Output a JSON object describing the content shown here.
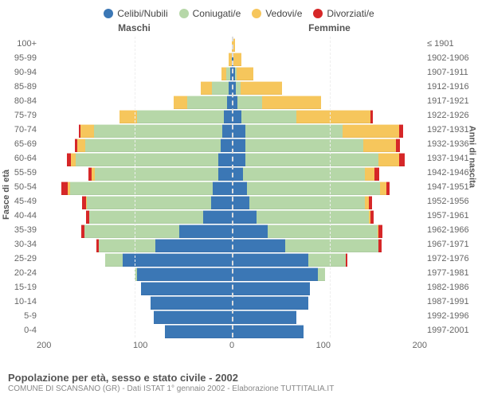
{
  "chart": {
    "type": "population-pyramid",
    "legend": [
      {
        "label": "Celibi/Nubili",
        "color": "#3b77b5"
      },
      {
        "label": "Coniugati/e",
        "color": "#b6d7a8"
      },
      {
        "label": "Vedovi/e",
        "color": "#f6c65c"
      },
      {
        "label": "Divorziati/e",
        "color": "#d62728"
      }
    ],
    "header_male": "Maschi",
    "header_female": "Femmine",
    "y_left_title": "Fasce di età",
    "y_right_title": "Anni di nascita",
    "x_ticks": [
      "200",
      "100",
      "0",
      "100",
      "200"
    ],
    "xmax": 200,
    "title": "Popolazione per età, sesso e stato civile - 2002",
    "subtitle": "COMUNE DI SCANSANO (GR) - Dati ISTAT 1° gennaio 2002 - Elaborazione TUTTITALIA.IT",
    "rows": [
      {
        "age": "100+",
        "year": "≤ 1901",
        "m": [
          0,
          0,
          0,
          0
        ],
        "f": [
          0,
          0,
          3,
          0
        ]
      },
      {
        "age": "95-99",
        "year": "1902-1906",
        "m": [
          0,
          0,
          3,
          0
        ],
        "f": [
          2,
          0,
          8,
          0
        ]
      },
      {
        "age": "90-94",
        "year": "1907-1911",
        "m": [
          2,
          4,
          5,
          0
        ],
        "f": [
          3,
          2,
          18,
          0
        ]
      },
      {
        "age": "85-89",
        "year": "1912-1916",
        "m": [
          3,
          18,
          12,
          0
        ],
        "f": [
          4,
          5,
          44,
          0
        ]
      },
      {
        "age": "80-84",
        "year": "1917-1921",
        "m": [
          5,
          42,
          14,
          0
        ],
        "f": [
          6,
          26,
          62,
          0
        ]
      },
      {
        "age": "75-79",
        "year": "1922-1926",
        "m": [
          8,
          92,
          18,
          0
        ],
        "f": [
          10,
          58,
          78,
          2
        ]
      },
      {
        "age": "70-74",
        "year": "1927-1931",
        "m": [
          10,
          135,
          14,
          2
        ],
        "f": [
          14,
          102,
          60,
          4
        ]
      },
      {
        "age": "65-69",
        "year": "1932-1936",
        "m": [
          12,
          142,
          8,
          3
        ],
        "f": [
          14,
          124,
          34,
          5
        ]
      },
      {
        "age": "60-64",
        "year": "1937-1941",
        "m": [
          14,
          150,
          5,
          4
        ],
        "f": [
          14,
          140,
          22,
          6
        ]
      },
      {
        "age": "55-59",
        "year": "1942-1946",
        "m": [
          14,
          130,
          3,
          4
        ],
        "f": [
          12,
          128,
          10,
          5
        ]
      },
      {
        "age": "50-54",
        "year": "1947-1951",
        "m": [
          20,
          150,
          2,
          7
        ],
        "f": [
          16,
          140,
          6,
          4
        ]
      },
      {
        "age": "45-49",
        "year": "1952-1956",
        "m": [
          22,
          130,
          1,
          4
        ],
        "f": [
          18,
          122,
          4,
          3
        ]
      },
      {
        "age": "40-44",
        "year": "1957-1961",
        "m": [
          30,
          120,
          0,
          3
        ],
        "f": [
          26,
          118,
          2,
          3
        ]
      },
      {
        "age": "35-39",
        "year": "1962-1966",
        "m": [
          55,
          100,
          0,
          3
        ],
        "f": [
          38,
          115,
          1,
          4
        ]
      },
      {
        "age": "30-34",
        "year": "1967-1971",
        "m": [
          80,
          60,
          0,
          2
        ],
        "f": [
          56,
          98,
          0,
          3
        ]
      },
      {
        "age": "25-29",
        "year": "1972-1976",
        "m": [
          115,
          18,
          0,
          0
        ],
        "f": [
          80,
          40,
          0,
          1
        ]
      },
      {
        "age": "20-24",
        "year": "1977-1981",
        "m": [
          100,
          2,
          0,
          0
        ],
        "f": [
          90,
          8,
          0,
          0
        ]
      },
      {
        "age": "15-19",
        "year": "1982-1986",
        "m": [
          95,
          0,
          0,
          0
        ],
        "f": [
          82,
          0,
          0,
          0
        ]
      },
      {
        "age": "10-14",
        "year": "1987-1991",
        "m": [
          85,
          0,
          0,
          0
        ],
        "f": [
          80,
          0,
          0,
          0
        ]
      },
      {
        "age": "5-9",
        "year": "1992-1996",
        "m": [
          82,
          0,
          0,
          0
        ],
        "f": [
          68,
          0,
          0,
          0
        ]
      },
      {
        "age": "0-4",
        "year": "1997-2001",
        "m": [
          70,
          0,
          0,
          0
        ],
        "f": [
          75,
          0,
          0,
          0
        ]
      }
    ],
    "background_color": "#ffffff",
    "grid_color": "#eeeeee",
    "center_line_color": "#dddddd",
    "label_color": "#666666"
  }
}
